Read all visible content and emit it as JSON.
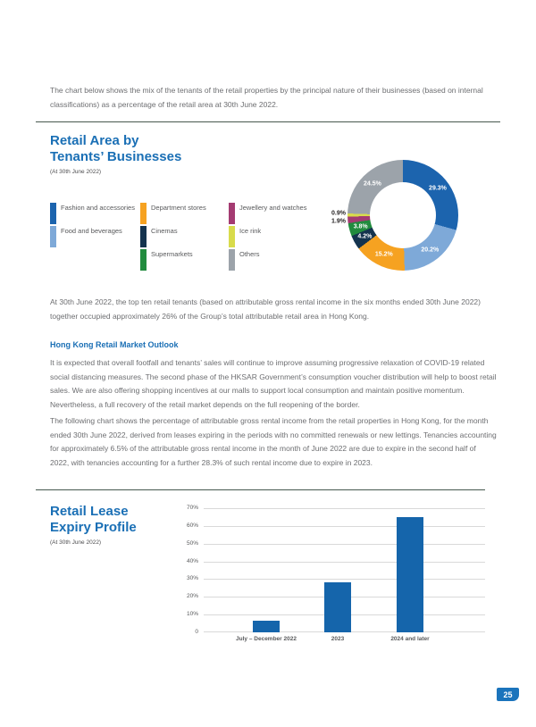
{
  "page": {
    "number": "25"
  },
  "intro": "The chart below shows the mix of the tenants of the retail properties by the principal nature of their businesses (based on internal classifications) as a percentage of the retail area at 30th June 2022.",
  "pie_section": {
    "title_line1": "Retail Area by",
    "title_line2": "Tenants’ Businesses",
    "subtitle": "(At 30th June 2022)"
  },
  "after_pie": "At 30th June 2022, the top ten retail tenants (based on attributable gross rental income in the six months ended 30th June 2022) together occupied approximately 26% of the Group’s total attributable retail area in Hong Kong.",
  "outlook": {
    "heading": "Hong Kong Retail Market Outlook",
    "para1": "It is expected that overall footfall and tenants’ sales will continue to improve assuming progressive relaxation of COVID-19 related social distancing measures. The second phase of the HKSAR Government’s consumption voucher distribution will help to boost retail sales. We are also offering shopping incentives at our malls to support local consumption and maintain positive momentum. Nevertheless, a full recovery of the retail market depends on the full reopening of the border.",
    "para2": "The following chart shows the percentage of attributable gross rental income from the retail properties in Hong Kong, for the month ended 30th June 2022, derived from leases expiring in the periods with no committed renewals or new lettings. Tenancies accounting for approximately 6.5% of the attributable gross rental income in the month of June 2022 are due to expire in the second half of 2022, with tenancies accounting for a further 28.3% of such rental income due to expire in 2023."
  },
  "bar_section": {
    "title_line1": "Retail Lease",
    "title_line2": "Expiry Profile",
    "subtitle": "(At 30th June 2022)"
  },
  "chart_data": [
    {
      "type": "pie",
      "title": "Retail Area by Tenants’ Businesses (At 30th June 2022)",
      "segments": [
        {
          "label": "Fashion and accessories",
          "value": 29.3,
          "color": "#1c64ae"
        },
        {
          "label": "Food and beverages",
          "value": 20.2,
          "color": "#7ea9d8"
        },
        {
          "label": "Department stores",
          "value": 15.2,
          "color": "#f6a221"
        },
        {
          "label": "Cinemas",
          "value": 4.2,
          "color": "#14334e"
        },
        {
          "label": "Supermarkets",
          "value": 3.8,
          "color": "#218b3e"
        },
        {
          "label": "Jewellery and watches",
          "value": 1.9,
          "color": "#a43b72"
        },
        {
          "label": "Ice rink",
          "value": 0.9,
          "color": "#d8db4b"
        },
        {
          "label": "Others",
          "value": 24.5,
          "color": "#9ca3aa"
        }
      ],
      "legend_columns": [
        [
          0,
          1
        ],
        [
          2,
          3,
          4
        ],
        [
          5,
          6,
          7
        ]
      ],
      "legend_position": "left"
    },
    {
      "type": "bar",
      "title": "Retail Lease Expiry Profile (At 30th June 2022)",
      "categories": [
        "July – December 2022",
        "2023",
        "2024 and later"
      ],
      "values": [
        6.5,
        28.3,
        65.2
      ],
      "ylim": [
        0,
        70
      ],
      "yticks": [
        "70%",
        "60%",
        "50%",
        "40%",
        "30%",
        "20%",
        "10%",
        "0"
      ],
      "bar_color": "#1565ab",
      "grid": "horizontal"
    }
  ]
}
